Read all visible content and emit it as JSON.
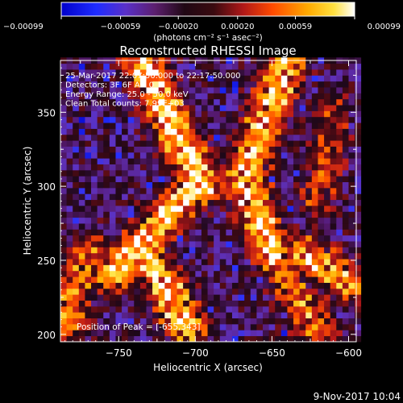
{
  "chart_data": {
    "type": "heatmap",
    "title": "Reconstructed RHESSI Image",
    "xlabel": "Heliocentric X (arcsec)",
    "ylabel": "Heliocentric Y (arcsec)",
    "xlim": [
      -788,
      -595
    ],
    "ylim": [
      195,
      385
    ],
    "x_ticks": [
      -750,
      -700,
      -650,
      -600
    ],
    "x_tick_labels": [
      "−750",
      "−700",
      "−650",
      "−600"
    ],
    "y_ticks": [
      200,
      250,
      300,
      350
    ],
    "y_tick_labels": [
      "200",
      "250",
      "300",
      "350"
    ],
    "colorbar": {
      "min": -0.00099,
      "max": 0.00099,
      "tick_values": [
        -0.00099,
        -0.00059,
        -0.0002,
        0.0002,
        0.00059,
        0.00099
      ],
      "tick_labels": [
        "−0.00099",
        "−0.00059",
        "−0.00020",
        "0.00020",
        "0.00059",
        "0.00099"
      ],
      "units_label": "(photons cm⁻² s⁻¹ asec⁻²)"
    },
    "annotations": [
      "25-Mar-2017 22:07:50.000 to 22:17:50.000",
      "Detectors: 3F 6F  Att 0",
      "Energy Range: 25.0 - 50.0 keV",
      "Clean     Total counts: 7.99E+03"
    ],
    "peak_label": "Position of Peak = [-655,343]",
    "peak_position": [
      -655,
      343
    ],
    "emission_bands": [
      {
        "x_start": -735,
        "y_start": 385,
        "x_end": -695,
        "y_end": 300,
        "strength": 0.9
      },
      {
        "x_start": -700,
        "y_start": 300,
        "x_end": -755,
        "y_end": 240,
        "strength": 0.85
      },
      {
        "x_start": -770,
        "y_start": 255,
        "x_end": -785,
        "y_end": 205,
        "strength": 0.6
      },
      {
        "x_start": -735,
        "y_start": 260,
        "x_end": -705,
        "y_end": 205,
        "strength": 0.85
      },
      {
        "x_start": -640,
        "y_start": 385,
        "x_end": -670,
        "y_end": 300,
        "strength": 0.8
      },
      {
        "x_start": -665,
        "y_start": 300,
        "x_end": -650,
        "y_end": 255,
        "strength": 0.85
      },
      {
        "x_start": -630,
        "y_start": 255,
        "x_end": -600,
        "y_end": 235,
        "strength": 0.75
      },
      {
        "x_start": -620,
        "y_start": 290,
        "x_end": -610,
        "y_end": 350,
        "strength": 0.4
      },
      {
        "x_start": -650,
        "y_start": 255,
        "x_end": -620,
        "y_end": 200,
        "strength": 0.55
      }
    ]
  },
  "footer": {
    "timestamp": "9-Nov-2017 10:04"
  },
  "colors": {
    "background": "#000000",
    "foreground": "#ffffff"
  }
}
